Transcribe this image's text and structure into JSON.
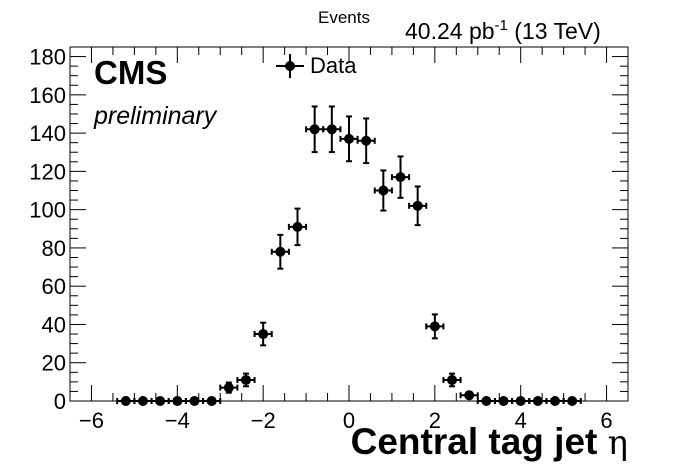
{
  "chart_data": {
    "type": "scatter",
    "title": "",
    "ylabel_top": "Events",
    "lumi_label": "40.24 pb",
    "lumi_exp": "-1",
    "energy_label": " (13 TeV)",
    "cms_label": "CMS",
    "prelim_label": "preliminary",
    "xlabel_main": "Central tag jet ",
    "xlabel_symbol": "η",
    "legend_label": "Data",
    "legend_position": "top-center",
    "xlim": [
      -6.5,
      6.5
    ],
    "ylim": [
      0,
      185
    ],
    "x_ticks": [
      -6,
      -4,
      -2,
      0,
      2,
      4,
      6
    ],
    "x_tick_labels": [
      "−6",
      "−4",
      "−2",
      "0",
      "2",
      "4",
      "6"
    ],
    "y_ticks": [
      0,
      20,
      40,
      60,
      80,
      100,
      120,
      140,
      160,
      180
    ],
    "y_tick_labels": [
      "0",
      "20",
      "40",
      "60",
      "80",
      "100",
      "120",
      "140",
      "160",
      "180"
    ],
    "bin_half_width": 0.2,
    "series": [
      {
        "x": [
          -5.2,
          -4.8,
          -4.4,
          -4.0,
          -3.6,
          -3.2,
          -2.8,
          -2.4,
          -2.0,
          -1.6,
          -1.2,
          -0.8,
          -0.4,
          0.0,
          0.4,
          0.8,
          1.2,
          1.6,
          2.0,
          2.4,
          2.8,
          3.2,
          3.6,
          4.0,
          4.4,
          4.8,
          5.2
        ],
        "y": [
          0,
          0,
          0,
          0,
          0,
          0,
          7,
          11,
          35,
          78,
          91,
          142,
          142,
          137,
          136,
          110,
          117,
          102,
          39,
          11,
          3,
          0,
          0,
          0,
          0,
          0,
          0
        ]
      }
    ]
  }
}
